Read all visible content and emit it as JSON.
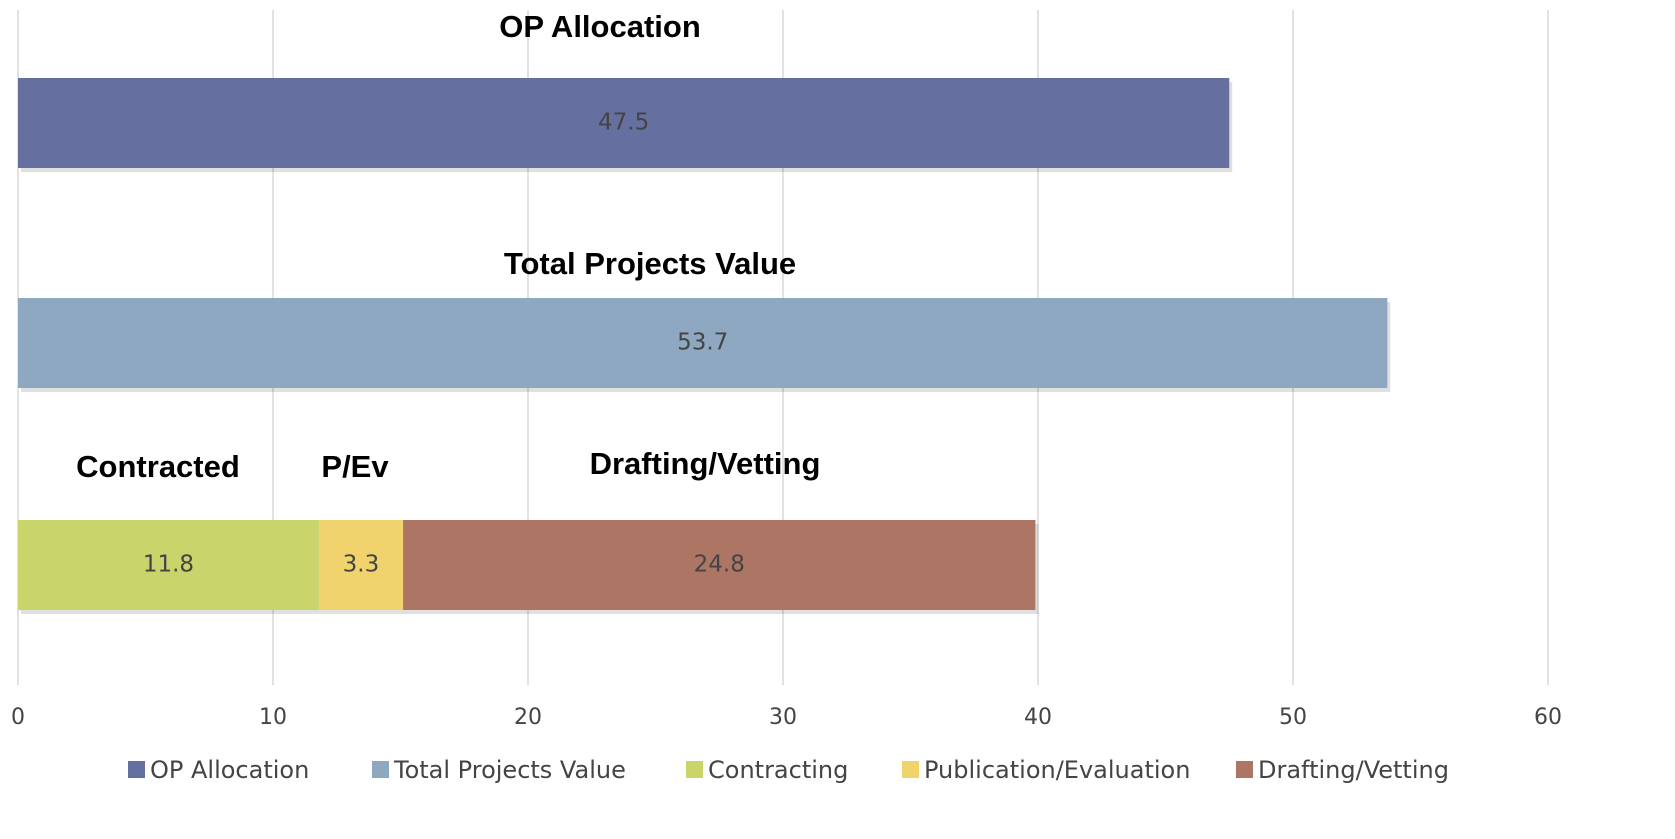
{
  "chart_data": {
    "type": "bar",
    "orientation": "horizontal",
    "stacked": true,
    "categories": [
      null,
      null,
      null
    ],
    "series": [
      {
        "name": "OP Allocation",
        "color": "#6570a0",
        "values": [
          47.5,
          null,
          null
        ]
      },
      {
        "name": "Total Projects Value",
        "color": "#8ea8c2",
        "values": [
          null,
          53.7,
          null
        ]
      },
      {
        "name": "Contracting",
        "color": "#c9d46a",
        "values": [
          null,
          null,
          11.8
        ]
      },
      {
        "name": "Publication/Evaluation",
        "color": "#f0d36c",
        "values": [
          null,
          null,
          3.3
        ]
      },
      {
        "name": "Drafting/Vetting",
        "color": "#ad7664",
        "values": [
          null,
          null,
          24.8
        ]
      }
    ],
    "annotations": [
      "OP Allocation",
      "Total Projects Value",
      "Contracted",
      "P/Ev",
      "Drafting/Vetting"
    ],
    "xlim": [
      0,
      60
    ],
    "xticks": [
      0,
      10,
      20,
      30,
      40,
      50,
      60
    ],
    "grid": true,
    "legend": "bottom"
  }
}
